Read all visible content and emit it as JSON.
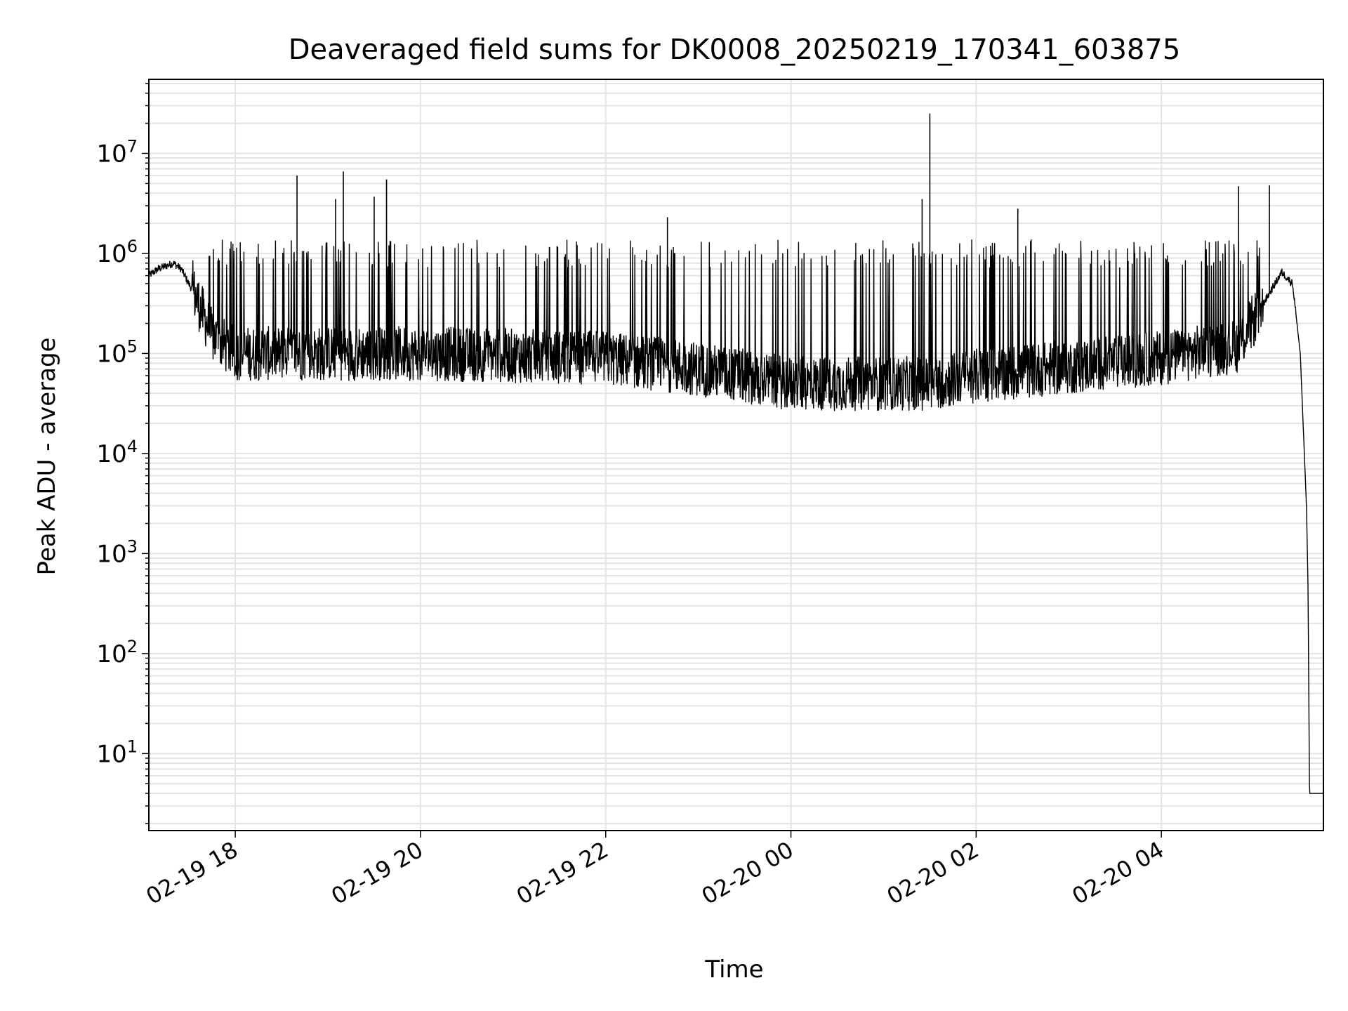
{
  "chart_data": {
    "type": "line",
    "title": "Deaveraged field sums for DK0008_20250219_170341_603875",
    "xlabel": "Time",
    "ylabel": "Peak ADU - average",
    "yscale": "log",
    "grid": true,
    "xlim": [
      "2025-02-19 17:04",
      "2025-02-20 05:45"
    ],
    "ylim": [
      1.7,
      55000000
    ],
    "x_ticks": [
      {
        "t": "2025-02-19 18:00",
        "label": "02-19 18"
      },
      {
        "t": "2025-02-19 20:00",
        "label": "02-19 20"
      },
      {
        "t": "2025-02-19 22:00",
        "label": "02-19 22"
      },
      {
        "t": "2025-02-20 00:00",
        "label": "02-20 00"
      },
      {
        "t": "2025-02-20 02:00",
        "label": "02-20 02"
      },
      {
        "t": "2025-02-20 04:00",
        "label": "02-20 04"
      }
    ],
    "y_ticks": [
      {
        "value": 10,
        "base": "10",
        "exp": "1"
      },
      {
        "value": 100,
        "base": "10",
        "exp": "2"
      },
      {
        "value": 1000,
        "base": "10",
        "exp": "3"
      },
      {
        "value": 10000,
        "base": "10",
        "exp": "4"
      },
      {
        "value": 100000,
        "base": "10",
        "exp": "5"
      },
      {
        "value": 1000000,
        "base": "10",
        "exp": "6"
      },
      {
        "value": 10000000,
        "base": "10",
        "exp": "7"
      }
    ],
    "series": [
      {
        "color": "#000000",
        "baseline": [
          {
            "t": "2025-02-19 17:04",
            "y": 600000
          },
          {
            "t": "2025-02-19 17:10",
            "y": 700000
          },
          {
            "t": "2025-02-19 17:20",
            "y": 800000
          },
          {
            "t": "2025-02-19 17:25",
            "y": 700000
          },
          {
            "t": "2025-02-19 17:35",
            "y": 350000
          },
          {
            "t": "2025-02-19 17:45",
            "y": 150000
          },
          {
            "t": "2025-02-19 18:00",
            "y": 100000
          },
          {
            "t": "2025-02-19 20:00",
            "y": 100000
          },
          {
            "t": "2025-02-19 22:00",
            "y": 90000
          },
          {
            "t": "2025-02-19 23:00",
            "y": 70000
          },
          {
            "t": "2025-02-20 00:00",
            "y": 50000
          },
          {
            "t": "2025-02-20 01:30",
            "y": 50000
          },
          {
            "t": "2025-02-20 02:00",
            "y": 60000
          },
          {
            "t": "2025-02-20 04:00",
            "y": 90000
          },
          {
            "t": "2025-02-20 04:50",
            "y": 120000
          },
          {
            "t": "2025-02-20 05:10",
            "y": 400000
          },
          {
            "t": "2025-02-20 05:18",
            "y": 650000
          },
          {
            "t": "2025-02-20 05:25",
            "y": 500000
          },
          {
            "t": "2025-02-20 05:30",
            "y": 100000
          },
          {
            "t": "2025-02-20 05:34",
            "y": 3000
          },
          {
            "t": "2025-02-20 05:35",
            "y": 500
          },
          {
            "t": "2025-02-20 05:36",
            "y": 4
          },
          {
            "t": "2025-02-20 05:45",
            "y": 4
          }
        ],
        "spikes": [
          {
            "t": "2025-02-19 18:40",
            "y": 6000000
          },
          {
            "t": "2025-02-19 19:05",
            "y": 3500000
          },
          {
            "t": "2025-02-19 19:10",
            "y": 6600000
          },
          {
            "t": "2025-02-19 19:30",
            "y": 3700000
          },
          {
            "t": "2025-02-19 19:38",
            "y": 5500000
          },
          {
            "t": "2025-02-19 22:40",
            "y": 2300000
          },
          {
            "t": "2025-02-20 01:25",
            "y": 3500000
          },
          {
            "t": "2025-02-20 01:30",
            "y": 25000000
          },
          {
            "t": "2025-02-20 02:27",
            "y": 2800000
          },
          {
            "t": "2025-02-20 04:50",
            "y": 4700000
          },
          {
            "t": "2025-02-20 05:10",
            "y": 4800000
          }
        ]
      }
    ]
  }
}
